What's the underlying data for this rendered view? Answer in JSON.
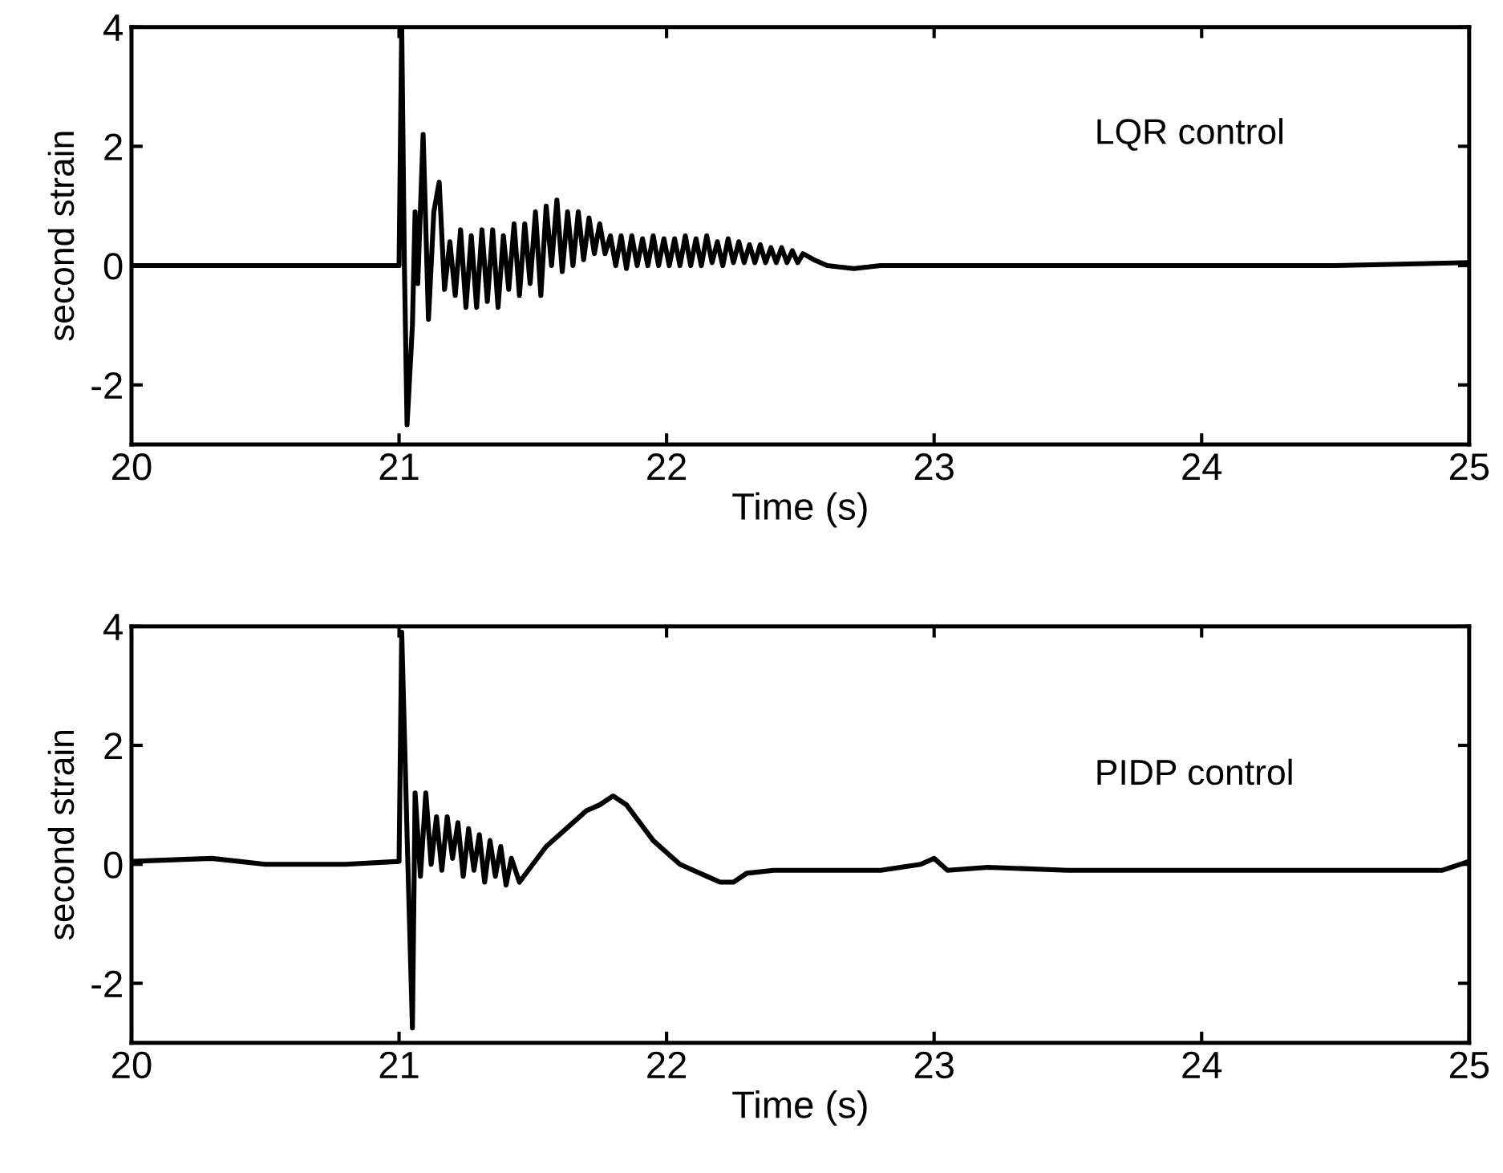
{
  "chart_data": [
    {
      "type": "line",
      "xlabel": "Time (s)",
      "ylabel": "second strain",
      "annotations": [
        "LQR control"
      ],
      "xlim": [
        20,
        25
      ],
      "ylim": [
        -3,
        4
      ],
      "xticks": [
        20,
        21,
        22,
        23,
        24,
        25
      ],
      "yticks": [
        -2,
        0,
        2,
        4
      ],
      "grid": false,
      "series": [
        {
          "color": "#000000",
          "x": [
            20,
            20.5,
            21.0,
            21.01,
            21.02,
            21.03,
            21.05,
            21.06,
            21.07,
            21.09,
            21.11,
            21.13,
            21.15,
            21.17,
            21.19,
            21.21,
            21.23,
            21.25,
            21.27,
            21.29,
            21.31,
            21.33,
            21.35,
            21.37,
            21.39,
            21.41,
            21.43,
            21.45,
            21.47,
            21.49,
            21.51,
            21.53,
            21.55,
            21.57,
            21.59,
            21.61,
            21.63,
            21.65,
            21.67,
            21.69,
            21.71,
            21.73,
            21.75,
            21.77,
            21.79,
            21.81,
            21.83,
            21.85,
            21.87,
            21.89,
            21.91,
            21.93,
            21.95,
            21.97,
            21.99,
            22.01,
            22.03,
            22.05,
            22.07,
            22.09,
            22.11,
            22.13,
            22.15,
            22.17,
            22.19,
            22.21,
            22.23,
            22.25,
            22.27,
            22.29,
            22.31,
            22.33,
            22.35,
            22.37,
            22.39,
            22.41,
            22.43,
            22.45,
            22.47,
            22.49,
            22.51,
            22.55,
            22.6,
            22.7,
            22.8,
            23.5,
            24,
            24.5,
            25
          ],
          "values": [
            0,
            0,
            0,
            4,
            0,
            -2.67,
            -1.0,
            0.9,
            -0.3,
            2.2,
            -0.9,
            0.9,
            1.4,
            -0.4,
            0.4,
            -0.5,
            0.6,
            -0.7,
            0.5,
            -0.7,
            0.6,
            -0.6,
            0.6,
            -0.7,
            0.5,
            -0.4,
            0.7,
            -0.5,
            0.7,
            -0.3,
            0.9,
            -0.5,
            1.0,
            0.0,
            1.1,
            -0.1,
            0.9,
            0.0,
            0.9,
            0.1,
            0.8,
            0.2,
            0.7,
            0.2,
            0.5,
            0.0,
            0.5,
            -0.05,
            0.5,
            0.0,
            0.45,
            0.0,
            0.5,
            0.0,
            0.45,
            0.0,
            0.45,
            0.0,
            0.5,
            0.0,
            0.45,
            0.0,
            0.5,
            0.05,
            0.4,
            0.0,
            0.45,
            0.05,
            0.4,
            0.05,
            0.35,
            0.05,
            0.35,
            0.05,
            0.3,
            0.05,
            0.3,
            0.05,
            0.25,
            0.05,
            0.2,
            0.1,
            0.0,
            -0.05,
            0.0,
            0.0,
            0.0,
            0.0,
            0.05
          ]
        }
      ]
    },
    {
      "type": "line",
      "xlabel": "Time (s)",
      "ylabel": "second strain",
      "annotations": [
        "PIDP control"
      ],
      "xlim": [
        20,
        25
      ],
      "ylim": [
        -3,
        4
      ],
      "xticks": [
        20,
        21,
        22,
        23,
        24,
        25
      ],
      "yticks": [
        -2,
        0,
        2,
        4
      ],
      "grid": false,
      "series": [
        {
          "color": "#000000",
          "x": [
            20,
            20.3,
            20.5,
            20.8,
            21.0,
            21.01,
            21.03,
            21.05,
            21.06,
            21.08,
            21.1,
            21.12,
            21.14,
            21.16,
            21.18,
            21.2,
            21.22,
            21.24,
            21.26,
            21.28,
            21.3,
            21.32,
            21.34,
            21.36,
            21.38,
            21.4,
            21.42,
            21.45,
            21.5,
            21.55,
            21.6,
            21.65,
            21.7,
            21.75,
            21.8,
            21.85,
            21.9,
            21.95,
            22.0,
            22.05,
            22.1,
            22.15,
            22.2,
            22.25,
            22.3,
            22.4,
            22.6,
            22.8,
            22.95,
            23.0,
            23.05,
            23.2,
            23.5,
            24.0,
            24.5,
            24.9,
            25
          ],
          "values": [
            0.05,
            0.1,
            0.0,
            0.0,
            0.05,
            3.9,
            0.5,
            -2.75,
            1.2,
            -0.2,
            1.2,
            0.0,
            0.8,
            -0.1,
            0.8,
            0.1,
            0.7,
            -0.2,
            0.6,
            -0.1,
            0.5,
            -0.3,
            0.4,
            -0.2,
            0.3,
            -0.35,
            0.1,
            -0.3,
            0.0,
            0.3,
            0.5,
            0.7,
            0.9,
            1.0,
            1.15,
            1.0,
            0.7,
            0.4,
            0.2,
            0.0,
            -0.1,
            -0.2,
            -0.3,
            -0.3,
            -0.15,
            -0.1,
            -0.1,
            -0.1,
            0.0,
            0.1,
            -0.1,
            -0.05,
            -0.1,
            -0.1,
            -0.1,
            -0.1,
            0.05
          ]
        }
      ]
    }
  ]
}
